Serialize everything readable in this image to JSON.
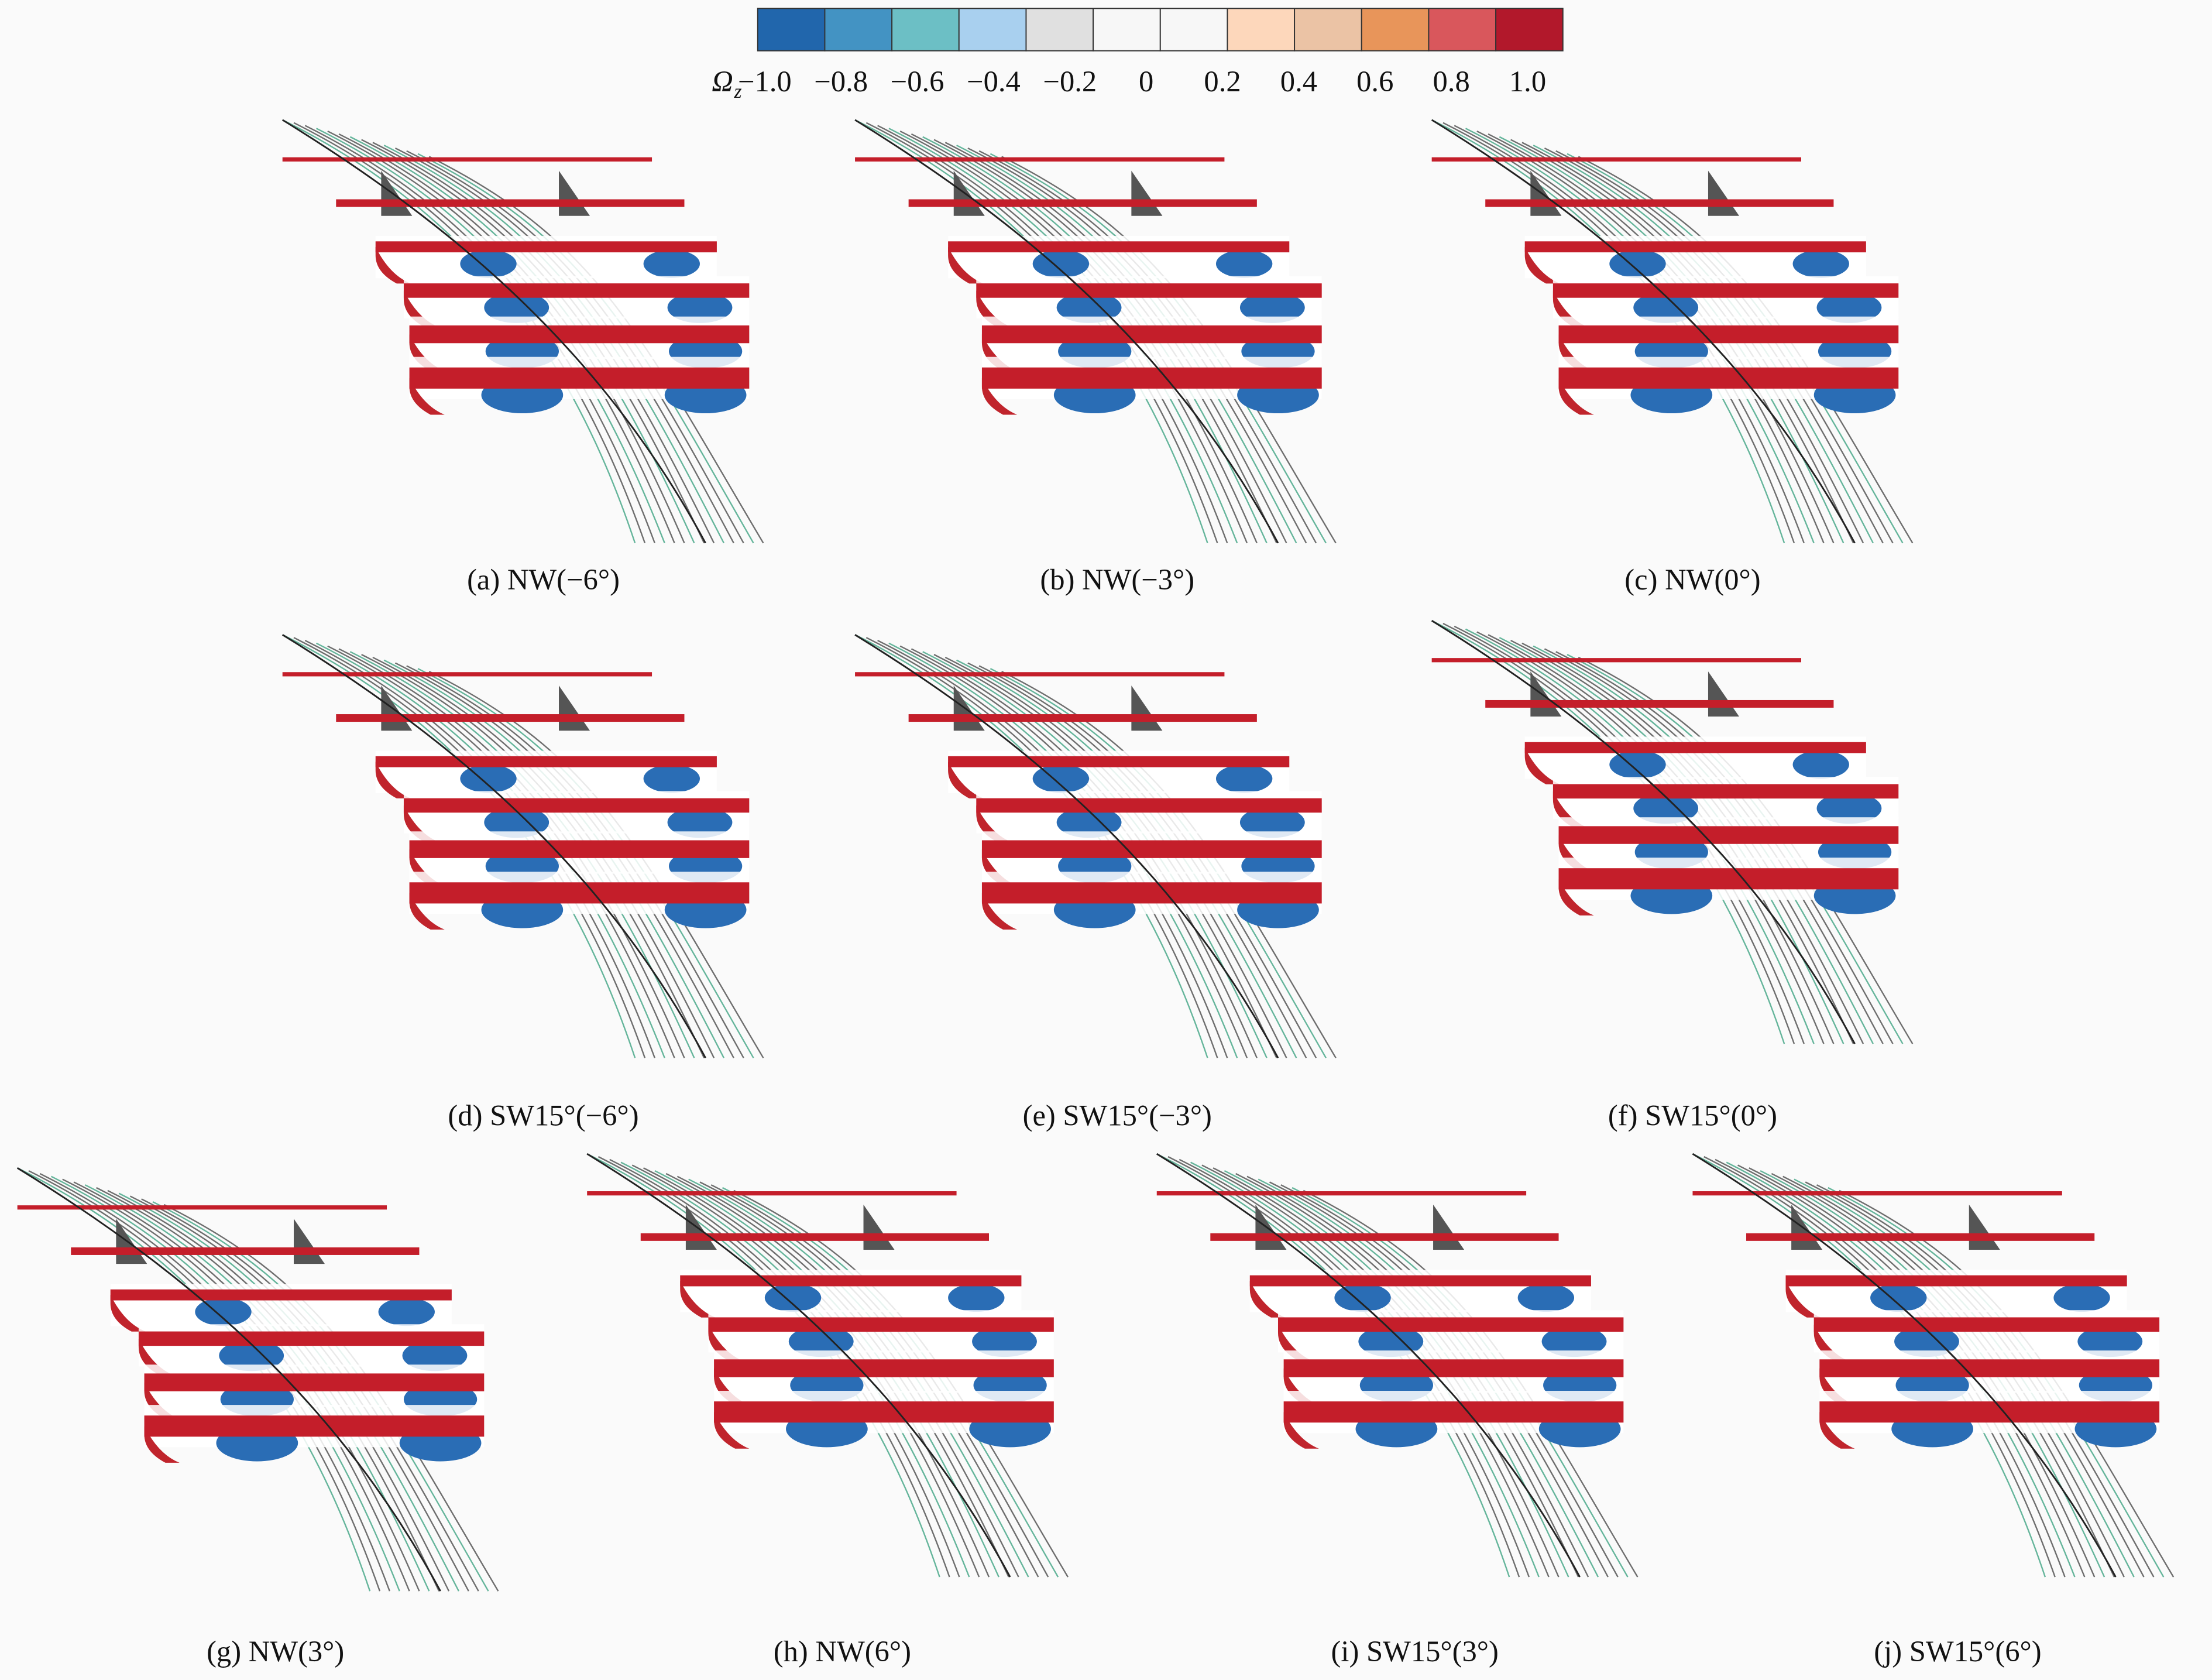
{
  "colorbar": {
    "symbol": "Ω",
    "subscript": "z",
    "colors": [
      "#2166ac",
      "#4393c3",
      "#6cbfc5",
      "#a9d0ef",
      "#e0e0e0",
      "#f7f7f7",
      "#f7f7f7",
      "#fdd7bb",
      "#ebc3a5",
      "#e8955a",
      "#d9575c",
      "#b2182b"
    ],
    "tick_labels": [
      "−1.0",
      "−0.8",
      "−0.6",
      "−0.4",
      "−0.2",
      "0",
      "0.2",
      "0.4",
      "0.6",
      "0.8",
      "1.0"
    ]
  },
  "panels": [
    {
      "caption": "(a) NW(−6°)"
    },
    {
      "caption": "(b) NW(−3°)"
    },
    {
      "caption": "(c) NW(0°)"
    },
    {
      "caption": "(d) SW15°(−6°)"
    },
    {
      "caption": "(e) SW15°(−3°)"
    },
    {
      "caption": "(f) SW15°(0°)"
    },
    {
      "caption": "(g) NW(3°)"
    },
    {
      "caption": "(h) NW(6°)"
    },
    {
      "caption": "(i) SW15°(3°)"
    },
    {
      "caption": "(j) SW15°(6°)"
    }
  ]
}
